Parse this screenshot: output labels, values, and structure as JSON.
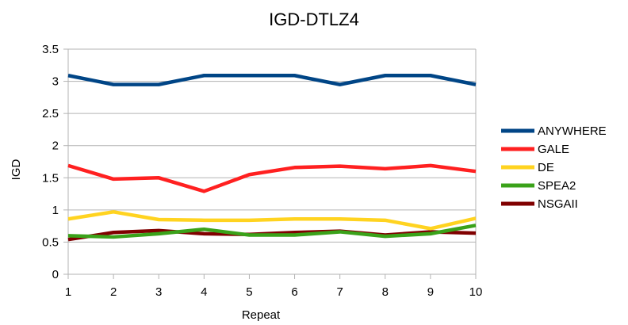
{
  "chart_data": {
    "type": "line",
    "title": "IGD-DTLZ4",
    "xlabel": "Repeat",
    "ylabel": "IGD",
    "x": [
      1,
      2,
      3,
      4,
      5,
      6,
      7,
      8,
      9,
      10
    ],
    "ylim": [
      0,
      3.5
    ],
    "yticks": [
      "0",
      "0.5",
      "1",
      "1.5",
      "2",
      "2.5",
      "3",
      "3.5"
    ],
    "grid": "horizontal",
    "legend_position": "right",
    "series": [
      {
        "name": "ANYWHERE",
        "color": "#004586",
        "values": [
          3.09,
          2.95,
          2.95,
          3.09,
          3.09,
          3.09,
          2.95,
          3.09,
          3.09,
          2.95
        ]
      },
      {
        "name": "GALE",
        "color": "#ff2020",
        "values": [
          1.69,
          1.48,
          1.5,
          1.29,
          1.55,
          1.66,
          1.68,
          1.64,
          1.69,
          1.6
        ]
      },
      {
        "name": "DE",
        "color": "#ffd320",
        "values": [
          0.86,
          0.97,
          0.85,
          0.84,
          0.84,
          0.86,
          0.86,
          0.84,
          0.71,
          0.87
        ]
      },
      {
        "name": "SPEA2",
        "color": "#3aa21a",
        "values": [
          0.6,
          0.58,
          0.63,
          0.7,
          0.61,
          0.61,
          0.66,
          0.59,
          0.63,
          0.76
        ]
      },
      {
        "name": "NSGAII",
        "color": "#800000",
        "values": [
          0.54,
          0.65,
          0.68,
          0.63,
          0.62,
          0.65,
          0.67,
          0.61,
          0.66,
          0.64
        ]
      }
    ]
  }
}
